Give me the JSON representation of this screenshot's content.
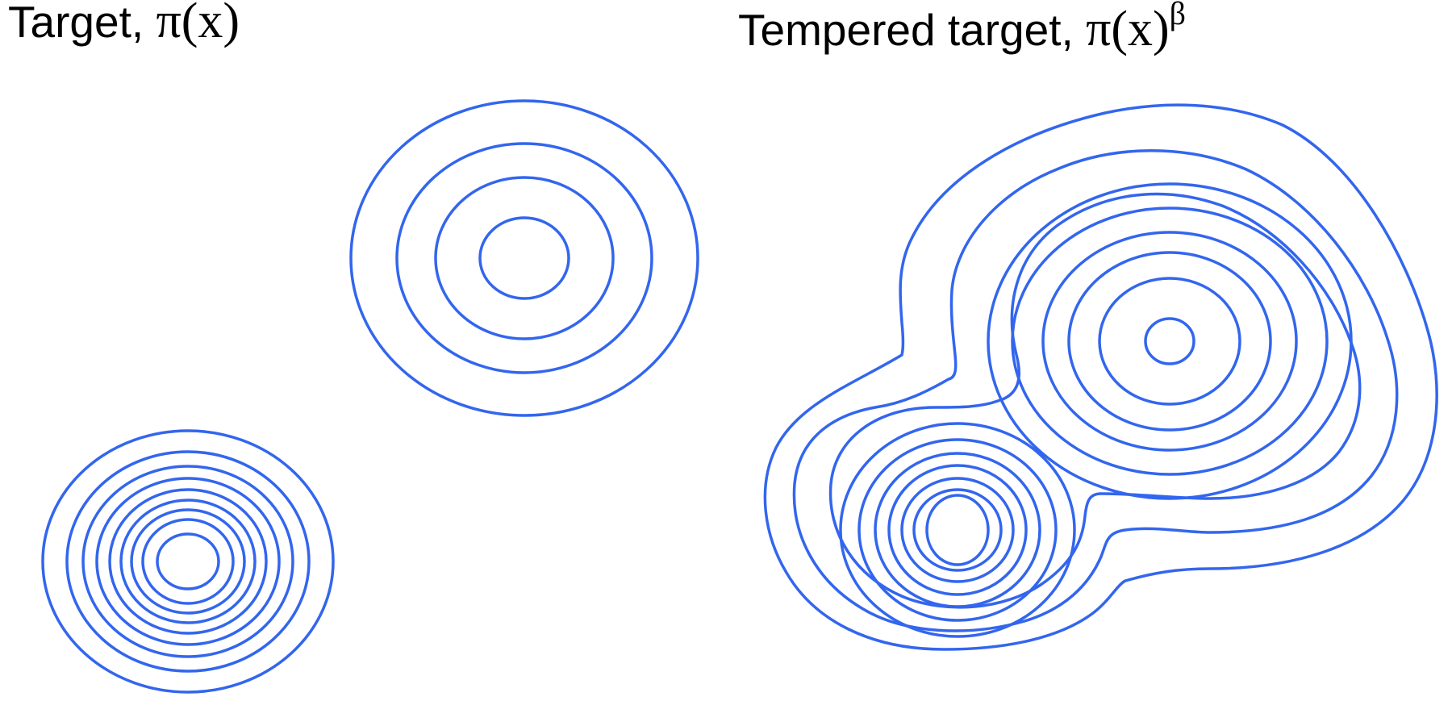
{
  "colors": {
    "contour": "#3366ee",
    "text": "#000000",
    "background": "#ffffff"
  },
  "panels": [
    {
      "id": "target",
      "title": {
        "text": "Target, ",
        "symbol": "π(x)",
        "superscript": ""
      },
      "modes": [
        {
          "id": "upper-mode",
          "contour_levels": 4
        },
        {
          "id": "lower-mode",
          "contour_levels": 9
        }
      ]
    },
    {
      "id": "tempered-target",
      "title": {
        "text": "Tempered target, ",
        "symbol": "π(x)",
        "superscript": "β"
      },
      "modes": [
        {
          "id": "upper-mode",
          "contour_levels": 7
        },
        {
          "id": "lower-mode",
          "contour_levels": 7
        }
      ],
      "merged_contour_levels": 3
    }
  ]
}
